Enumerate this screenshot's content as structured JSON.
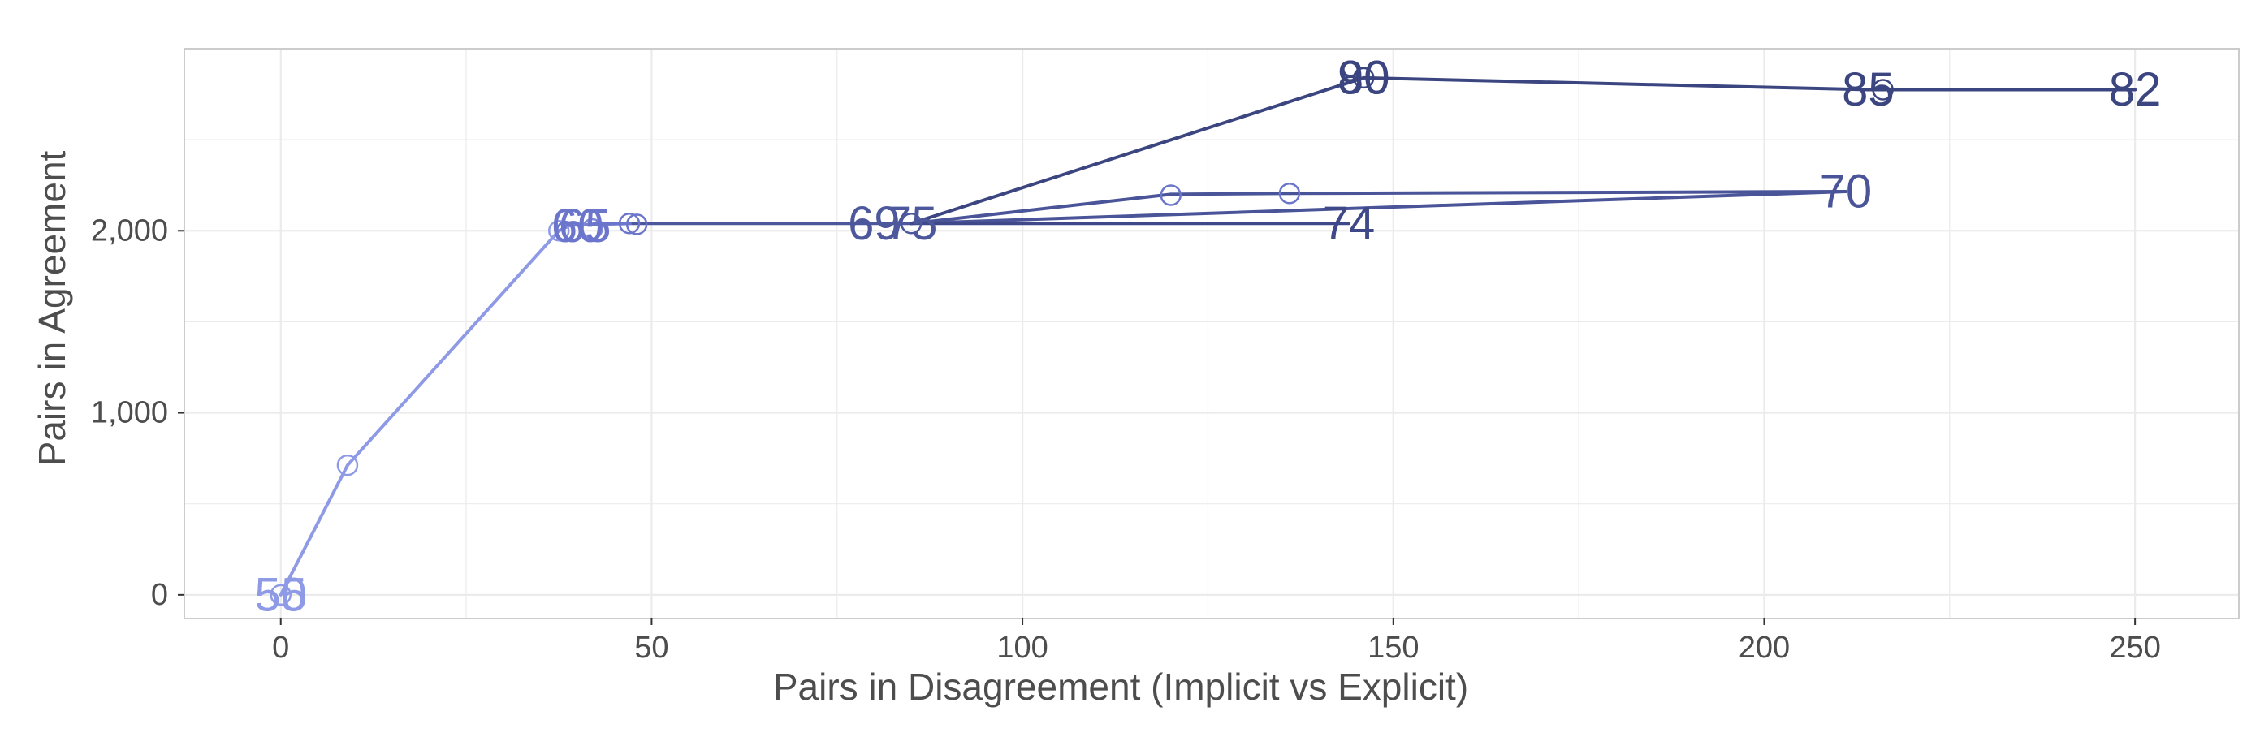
{
  "chart_data": {
    "type": "line",
    "title": "",
    "xlabel": "Pairs in Disagreement (Implicit vs Explicit)",
    "ylabel": "Pairs in Agreement",
    "xlim": [
      -13,
      264
    ],
    "ylim": [
      -130,
      3000
    ],
    "x_ticks": [
      {
        "value": 0,
        "label": "0"
      },
      {
        "value": 50,
        "label": "50"
      },
      {
        "value": 100,
        "label": "100"
      },
      {
        "value": 150,
        "label": "150"
      },
      {
        "value": 200,
        "label": "200"
      },
      {
        "value": 250,
        "label": "250"
      }
    ],
    "y_ticks": [
      {
        "value": 0,
        "label": "0"
      },
      {
        "value": 1000,
        "label": "1,000"
      },
      {
        "value": 2000,
        "label": "2,000"
      }
    ],
    "grid": true,
    "legend": "none",
    "colors": {
      "light": "#8e9ae6",
      "mid": "#6b75cc",
      "dark": "#3b4580",
      "grid": "#ebebeb",
      "panel_border": "#cccccc",
      "text": "#4d4d4d"
    },
    "segments": [
      {
        "from": [
          0,
          0
        ],
        "to": [
          9,
          712
        ],
        "color": "#8e9ae6"
      },
      {
        "from": [
          9,
          712
        ],
        "to": [
          37.5,
          2000
        ],
        "color": "#8e9ae6"
      },
      {
        "from": [
          37.5,
          2000
        ],
        "to": [
          39,
          2030
        ],
        "color": "#7d88da"
      },
      {
        "from": [
          39,
          2030
        ],
        "to": [
          42,
          2035
        ],
        "color": "#7480d2"
      },
      {
        "from": [
          42,
          2035
        ],
        "to": [
          47.5,
          2040
        ],
        "color": "#6b75cc"
      },
      {
        "from": [
          47.5,
          2040
        ],
        "to": [
          85,
          2040
        ],
        "color": "#4c579c"
      },
      {
        "from": [
          85,
          2040
        ],
        "to": [
          146,
          2840
        ],
        "color": "#3b4580"
      },
      {
        "from": [
          146,
          2840
        ],
        "to": [
          214,
          2775
        ],
        "color": "#3b4580"
      },
      {
        "from": [
          214,
          2775
        ],
        "to": [
          250,
          2775
        ],
        "color": "#3b4580"
      },
      {
        "from": [
          85,
          2040
        ],
        "to": [
          120,
          2200
        ],
        "color": "#4a5498"
      },
      {
        "from": [
          120,
          2200
        ],
        "to": [
          136,
          2205
        ],
        "color": "#4a5498"
      },
      {
        "from": [
          136,
          2205
        ],
        "to": [
          211,
          2215
        ],
        "color": "#4a5498"
      },
      {
        "from": [
          211,
          2215
        ],
        "to": [
          85,
          2040
        ],
        "color": "#4a5498"
      },
      {
        "from": [
          85,
          2040
        ],
        "to": [
          144,
          2040
        ],
        "color": "#3f498a"
      }
    ],
    "points": [
      {
        "x": 0,
        "y": 0,
        "color": "#8e9ae6"
      },
      {
        "x": 9,
        "y": 712,
        "color": "#8e9ae6"
      },
      {
        "x": 37.5,
        "y": 2000,
        "color": "#8e9ae6"
      },
      {
        "x": 42,
        "y": 2010,
        "color": "#7d88da"
      },
      {
        "x": 47,
        "y": 2040,
        "color": "#6b75cc"
      },
      {
        "x": 48,
        "y": 2035,
        "color": "#6b75cc"
      },
      {
        "x": 85,
        "y": 2040,
        "color": "#4c579c"
      },
      {
        "x": 120,
        "y": 2195,
        "color": "#6b75cc"
      },
      {
        "x": 136,
        "y": 2205,
        "color": "#6b75cc"
      },
      {
        "x": 146,
        "y": 2840,
        "color": "#3b4580"
      },
      {
        "x": 216,
        "y": 2775,
        "color": "#3b4580"
      }
    ],
    "labels": [
      {
        "x": 0,
        "y": 0,
        "text": "55",
        "color": "#8e9ae6"
      },
      {
        "x": 0,
        "y": 0,
        "text": "50",
        "color": "#8e9ae6"
      },
      {
        "x": 40,
        "y": 2025,
        "text": "60",
        "color": "#6b75cc"
      },
      {
        "x": 41,
        "y": 2025,
        "text": "65",
        "color": "#6b75cc"
      },
      {
        "x": 80,
        "y": 2040,
        "text": "69",
        "color": "#4c579c"
      },
      {
        "x": 85,
        "y": 2040,
        "text": "75",
        "color": "#4c579c"
      },
      {
        "x": 146,
        "y": 2840,
        "text": "80",
        "color": "#3b4580"
      },
      {
        "x": 146,
        "y": 2840,
        "text": "90",
        "color": "#3b4580"
      },
      {
        "x": 214,
        "y": 2775,
        "text": "85",
        "color": "#3b4580"
      },
      {
        "x": 250,
        "y": 2775,
        "text": "82",
        "color": "#3b4580"
      },
      {
        "x": 211,
        "y": 2215,
        "text": "70",
        "color": "#4a5498"
      },
      {
        "x": 144,
        "y": 2040,
        "text": "74",
        "color": "#3f498a"
      }
    ]
  }
}
